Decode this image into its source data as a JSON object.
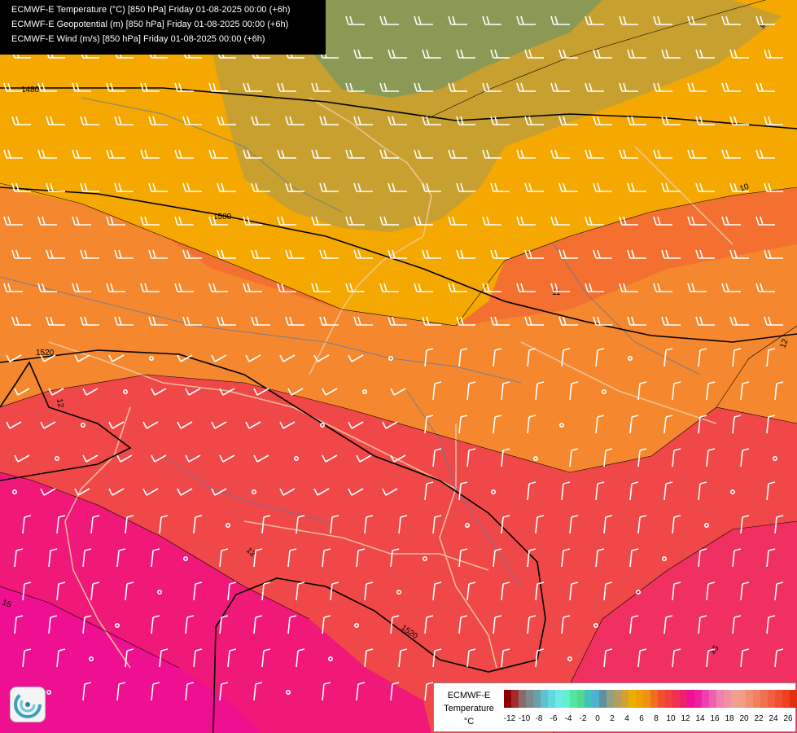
{
  "titles": {
    "line1": "ECMWF-E Temperature (°C) [850 hPa] Friday 01-08-2025 00:00 (+6h)",
    "line2": "ECMWF-E Geopotential (m) [850 hPa] Friday 01-08-2025 00:00 (+6h)",
    "line3": "ECMWF-E Wind (m/s) [850 hPa] Friday 01-08-2025 00:00 (+6h)"
  },
  "legend": {
    "model": "ECMWF-E",
    "variable": "Temperature",
    "unit": "°C",
    "ticks": [
      "-12",
      "-10",
      "-8",
      "-6",
      "-4",
      "-2",
      "0",
      "2",
      "4",
      "6",
      "8",
      "10",
      "12",
      "14",
      "16",
      "18",
      "20",
      "22",
      "24",
      "26"
    ],
    "colors": [
      "#8b0000",
      "#a52a2a",
      "#8a6a6a",
      "#7a8a8a",
      "#6aa0a8",
      "#5fc0d0",
      "#60d8e0",
      "#70e8e8",
      "#60f0d0",
      "#50e8a0",
      "#50d890",
      "#40c0c0",
      "#50b0d0",
      "#6090a0",
      "#90a080",
      "#b0a060",
      "#d0a030",
      "#e8b000",
      "#f0a000",
      "#f09010",
      "#f07020",
      "#f05030",
      "#f04040",
      "#f03050",
      "#f02070",
      "#f01090",
      "#f020a0",
      "#f040b0",
      "#f060b0",
      "#f080b0",
      "#f090a0",
      "#f0a090",
      "#f0a080",
      "#f09070",
      "#f08060",
      "#f07050",
      "#f06040",
      "#f05030",
      "#f04020",
      "#e03010"
    ]
  },
  "contours": {
    "geopotential": [
      "1480",
      "1500",
      "1520",
      "1520"
    ],
    "temperature": [
      "9",
      "10",
      "11",
      "12",
      "12",
      "13",
      "15",
      "15"
    ]
  },
  "colors": {
    "cold_green": "#8a9a50",
    "olive": "#c8a030",
    "amber": "#f0a800",
    "orange": "#f59030",
    "deep_orange": "#f47030",
    "red": "#f04848",
    "magenta_red": "#f03060",
    "magenta": "#f01878",
    "hot_magenta": "#ee1090"
  },
  "icons": {
    "logo": "ecmwf-swirl-logo-icon",
    "wind": "wind-barb-icon"
  }
}
